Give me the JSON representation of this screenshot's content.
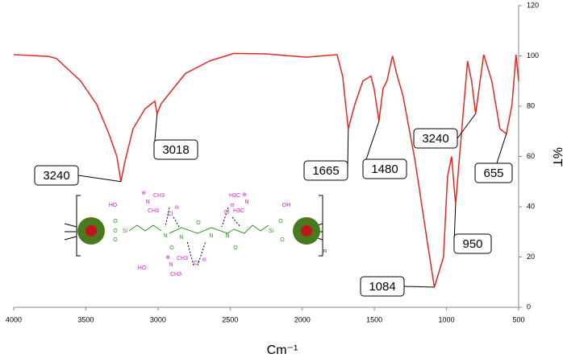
{
  "chart_data": {
    "type": "line",
    "xlabel": "Cm⁻¹",
    "ylabel": "%T",
    "xlim": [
      4000,
      500
    ],
    "ylim": [
      0,
      120
    ],
    "xticks": [
      4000,
      3500,
      3000,
      2500,
      2000,
      1500,
      1000,
      500
    ],
    "yticks": [
      0,
      20,
      40,
      60,
      80,
      100,
      120
    ],
    "grid": false,
    "series": [
      {
        "color": "#e8251f",
        "x": [
          4000,
          3760,
          3704,
          3536,
          3424,
          3340,
          3285,
          3257,
          3229,
          3173,
          3089,
          3022,
          3006,
          2978,
          2810,
          2642,
          2475,
          2251,
          1971,
          1759,
          1720,
          1681,
          1636,
          1580,
          1524,
          1502,
          1468,
          1440,
          1413,
          1374,
          1346,
          1301,
          1217,
          1133,
          1084,
          1021,
          993,
          965,
          937,
          898,
          854,
          826,
          798,
          742,
          686,
          630,
          585,
          546,
          518,
          500
        ],
        "values": [
          100.5,
          99.8,
          99,
          90,
          80.6,
          69,
          60,
          50,
          58,
          71,
          79,
          82,
          77,
          81,
          93,
          98,
          101,
          100.8,
          99.5,
          100.5,
          92,
          71,
          80.6,
          90,
          92,
          87,
          74,
          87,
          90,
          100,
          93,
          84,
          58,
          26,
          8,
          20,
          52,
          60,
          41,
          68,
          98,
          90,
          77,
          100.5,
          90,
          71,
          69,
          80.6,
          100.5,
          90
        ]
      }
    ],
    "annotations": [
      {
        "text": "3240",
        "x": 3257,
        "y": 50
      },
      {
        "text": "3018",
        "x": 3006,
        "y": 77
      },
      {
        "text": "1665",
        "x": 1681,
        "y": 71
      },
      {
        "text": "1480",
        "x": 1468,
        "y": 74
      },
      {
        "text": "3240",
        "x": 798,
        "y": 77
      },
      {
        "text": "655",
        "x": 585,
        "y": 69
      },
      {
        "text": "950",
        "x": 937,
        "y": 41
      },
      {
        "text": "1084",
        "x": 1084,
        "y": 8
      }
    ],
    "structure_labels": [
      "HO",
      "⊕",
      "N",
      "CH3",
      "CH3",
      "Cl",
      "⊖",
      "HO",
      "⊕",
      "N",
      "CH3",
      "CH3",
      "Cl",
      "⊖",
      "Cl",
      "⊖",
      "⊕",
      "N",
      "H3C",
      "H3C",
      "OH",
      "O",
      "Si",
      "O",
      "O",
      "N",
      "N",
      "O",
      "O",
      "N",
      "N",
      "O",
      "Si",
      "O",
      "O",
      "n"
    ]
  }
}
